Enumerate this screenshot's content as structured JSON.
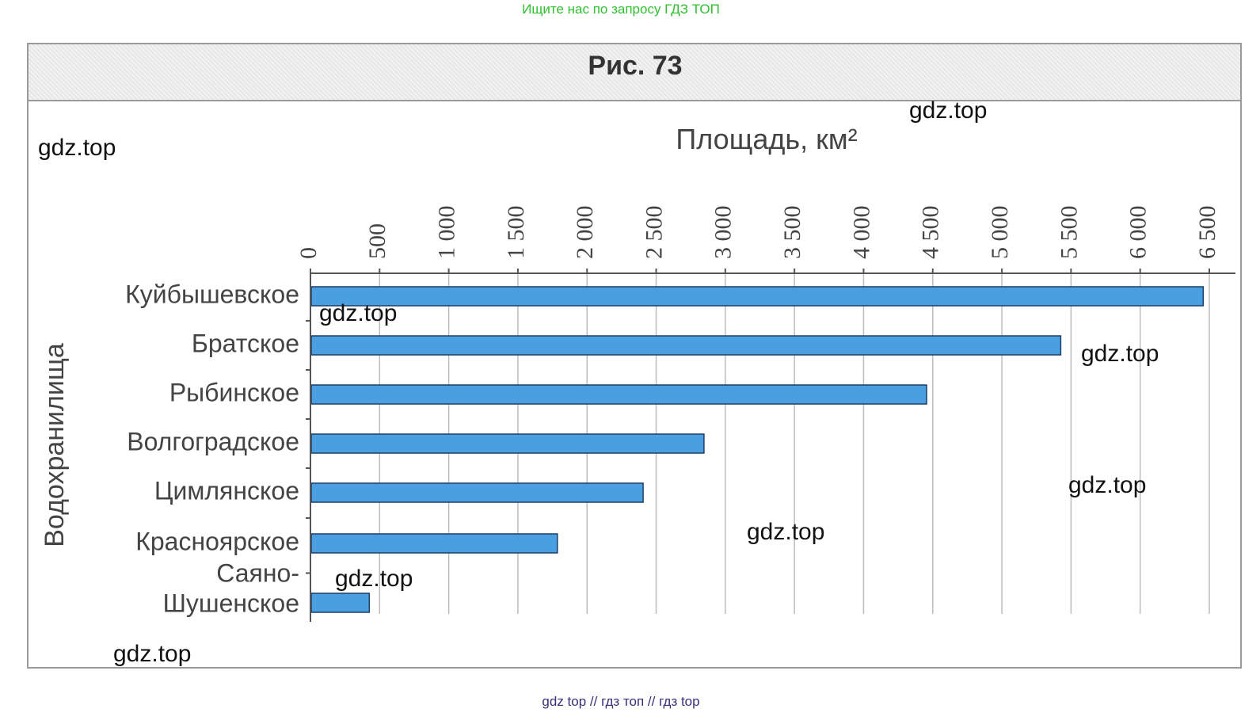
{
  "top_note": "Ищите нас по запросу ГДЗ ТОП",
  "footer_note": "gdz top  //  гдз топ  //  гдз top",
  "figure_title": "Рис. 73",
  "watermark_text": "gdz.top",
  "colors": {
    "bar": "#4a9fe0",
    "bar_border": "#1c3f66",
    "grid": "#bdbdbd",
    "axis": "#555555",
    "label": "#444444"
  },
  "chart_data": {
    "type": "bar",
    "orientation": "horizontal",
    "xlabel": "Площадь, км²",
    "ylabel": "Водохранилища",
    "categories": [
      "Куйбышевское",
      "Братское",
      "Рыбинское",
      "Волгоградское",
      "Цимлянское",
      "Красноярское",
      "Саяно-Шушенское"
    ],
    "category_lines": [
      [
        "Куйбышевское"
      ],
      [
        "Братское"
      ],
      [
        "Рыбинское"
      ],
      [
        "Волгоградское"
      ],
      [
        "Цимлянское"
      ],
      [
        "Красноярское"
      ],
      [
        "Саяно-",
        "Шушенское"
      ]
    ],
    "values": [
      6450,
      5420,
      4450,
      2840,
      2400,
      1780,
      420
    ],
    "xlim": [
      0,
      6500
    ],
    "ticks": [
      0,
      500,
      1000,
      1500,
      2000,
      2500,
      3000,
      3500,
      4000,
      4500,
      5000,
      5500,
      6000,
      6500
    ],
    "tick_labels": [
      "0",
      "500",
      "1 000",
      "1 500",
      "2 000",
      "2 500",
      "3 000",
      "3 500",
      "4 000",
      "4 500",
      "5 000",
      "5 500",
      "6 000",
      "6 500"
    ],
    "grid": true,
    "x_axis_position": "top"
  }
}
